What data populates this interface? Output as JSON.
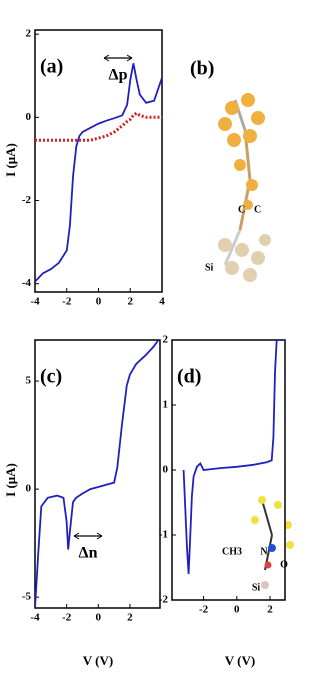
{
  "chart_data": [
    {
      "type": "line",
      "panel_label": "(a)",
      "y_label": "I (μA)",
      "annotation": "Δp",
      "x": [
        -4,
        -3.5,
        -3,
        -2.5,
        -2,
        -1.8,
        -1.6,
        -1.4,
        -1.2,
        -1,
        -0.5,
        0,
        0.5,
        1,
        1.5,
        1.8,
        2,
        2.2,
        2.4,
        2.6,
        3,
        3.5,
        4
      ],
      "series": [
        {
          "color": "#2020c0",
          "style": "solid",
          "values": [
            -3.95,
            -3.75,
            -3.65,
            -3.5,
            -3.2,
            -2.6,
            -1.4,
            -0.7,
            -0.45,
            -0.35,
            -0.25,
            -0.15,
            -0.08,
            -0.02,
            0.05,
            0.3,
            0.9,
            1.3,
            0.9,
            0.55,
            0.35,
            0.4,
            0.95
          ]
        },
        {
          "color": "#d02020",
          "style": "dotted",
          "values": [
            -0.55,
            -0.55,
            -0.55,
            -0.55,
            -0.55,
            -0.55,
            -0.55,
            -0.55,
            -0.55,
            -0.55,
            -0.55,
            -0.5,
            -0.45,
            -0.35,
            -0.2,
            -0.1,
            -0.05,
            0.05,
            0.1,
            0.05,
            0,
            0,
            0
          ]
        }
      ],
      "xlim": [
        -4,
        4
      ],
      "xticks": [
        -4,
        -2,
        0,
        2,
        4
      ],
      "ylim": [
        -4.2,
        2.1
      ],
      "yticks": [
        -4,
        -2,
        0,
        2
      ]
    },
    {
      "type": "line",
      "panel_label": "(c)",
      "y_label": "I (μA)",
      "x_label": "V (V)",
      "annotation": "Δn",
      "x": [
        -4,
        -3.8,
        -3.6,
        -3.2,
        -2.6,
        -2.2,
        -2,
        -1.9,
        -1.8,
        -1.6,
        -1.4,
        -1,
        -0.5,
        0,
        0.5,
        1,
        1.2,
        1.5,
        1.8,
        2,
        2.4,
        3,
        3.5,
        3.8
      ],
      "series": [
        {
          "color": "#2020c0",
          "style": "solid",
          "values": [
            -5.5,
            -3,
            -0.8,
            -0.4,
            -0.3,
            -0.4,
            -1.5,
            -2.8,
            -2,
            -0.6,
            -0.4,
            -0.2,
            0,
            0.1,
            0.2,
            0.3,
            1,
            3,
            4.8,
            5.3,
            5.8,
            6.2,
            6.6,
            6.9
          ]
        }
      ],
      "xlim": [
        -4,
        3.9
      ],
      "xticks": [
        -4,
        -2,
        0,
        2
      ],
      "ylim": [
        -5.5,
        6.9
      ],
      "yticks": [
        -5,
        0,
        5
      ]
    },
    {
      "type": "line",
      "panel_label": "(d)",
      "x_label": "V (V)",
      "inset_labels": [
        "N",
        "CH3",
        "O",
        "Si"
      ],
      "x": [
        -3.2,
        -3,
        -2.9,
        -2.8,
        -2.7,
        -2.6,
        -2.4,
        -2.2,
        -2,
        -1,
        0,
        1,
        1.8,
        2.1,
        2.2,
        2.3,
        2.4,
        2.9
      ],
      "series": [
        {
          "color": "#2020c0",
          "style": "solid",
          "values": [
            0,
            -1.2,
            -1.6,
            -1,
            -0.4,
            -0.1,
            0.05,
            0.1,
            0,
            0.03,
            0.05,
            0.08,
            0.12,
            0.15,
            0.5,
            1.5,
            2,
            2
          ]
        }
      ],
      "xlim": [
        -3.9,
        2.9
      ],
      "xticks": [
        -2,
        0,
        2
      ],
      "ylim": [
        -2,
        2
      ],
      "yticks": [
        -2,
        -1,
        0,
        1,
        2
      ]
    }
  ],
  "panel_b": {
    "label": "(b)",
    "atoms": [
      "Si",
      "C",
      "C"
    ]
  }
}
